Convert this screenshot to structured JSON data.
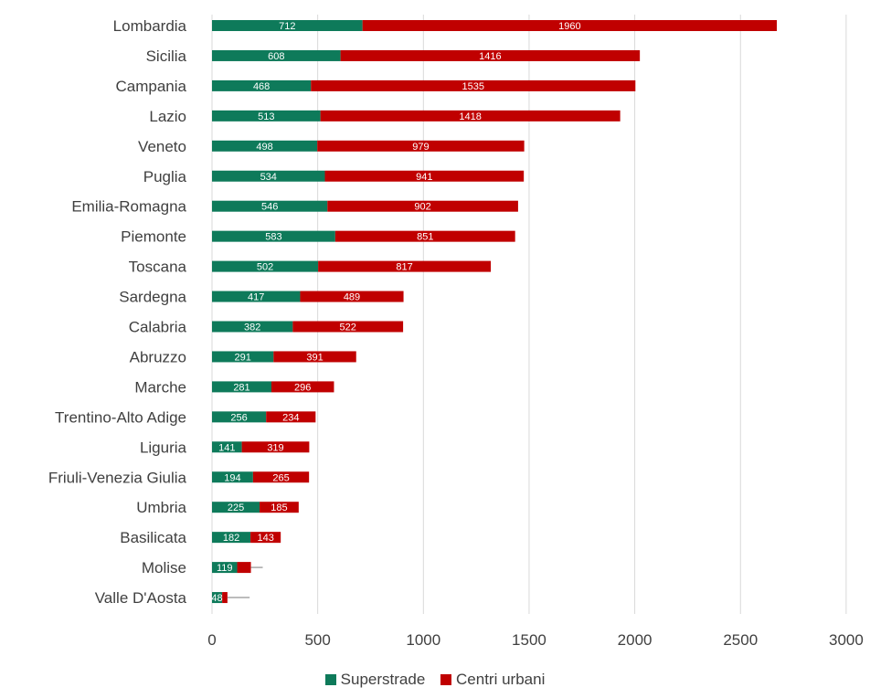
{
  "chart_data": {
    "type": "bar",
    "orientation": "horizontal",
    "stacked": true,
    "categories": [
      "Lombardia",
      "Sicilia",
      "Campania",
      "Lazio",
      "Veneto",
      "Puglia",
      "Emilia-Romagna",
      "Piemonte",
      "Toscana",
      "Sardegna",
      "Calabria",
      "Abruzzo",
      "Marche",
      "Trentino-Alto Adige",
      "Liguria",
      "Friuli-Venezia Giulia",
      "Umbria",
      "Basilicata",
      "Molise",
      "Valle D'Aosta"
    ],
    "series": [
      {
        "name": "Superstrade",
        "color": "#0e7a5a",
        "values": [
          712,
          608,
          468,
          513,
          498,
          534,
          546,
          583,
          502,
          417,
          382,
          291,
          281,
          256,
          141,
          194,
          225,
          182,
          119,
          48
        ]
      },
      {
        "name": "Centri urbani",
        "color": "#c00000",
        "values": [
          1960,
          1416,
          1535,
          1418,
          979,
          941,
          902,
          851,
          817,
          489,
          522,
          391,
          296,
          234,
          319,
          265,
          185,
          143,
          65,
          25
        ]
      }
    ],
    "error_bars": [
      {
        "category": "Molise",
        "to": 240
      },
      {
        "category": "Valle D'Aosta",
        "to": 178
      }
    ],
    "xlim": [
      0,
      3000
    ],
    "xticks": [
      0,
      500,
      1000,
      1500,
      2000,
      2500,
      3000
    ],
    "grid": true,
    "legend_position": "bottom",
    "title": "",
    "xlabel": "",
    "ylabel": ""
  }
}
